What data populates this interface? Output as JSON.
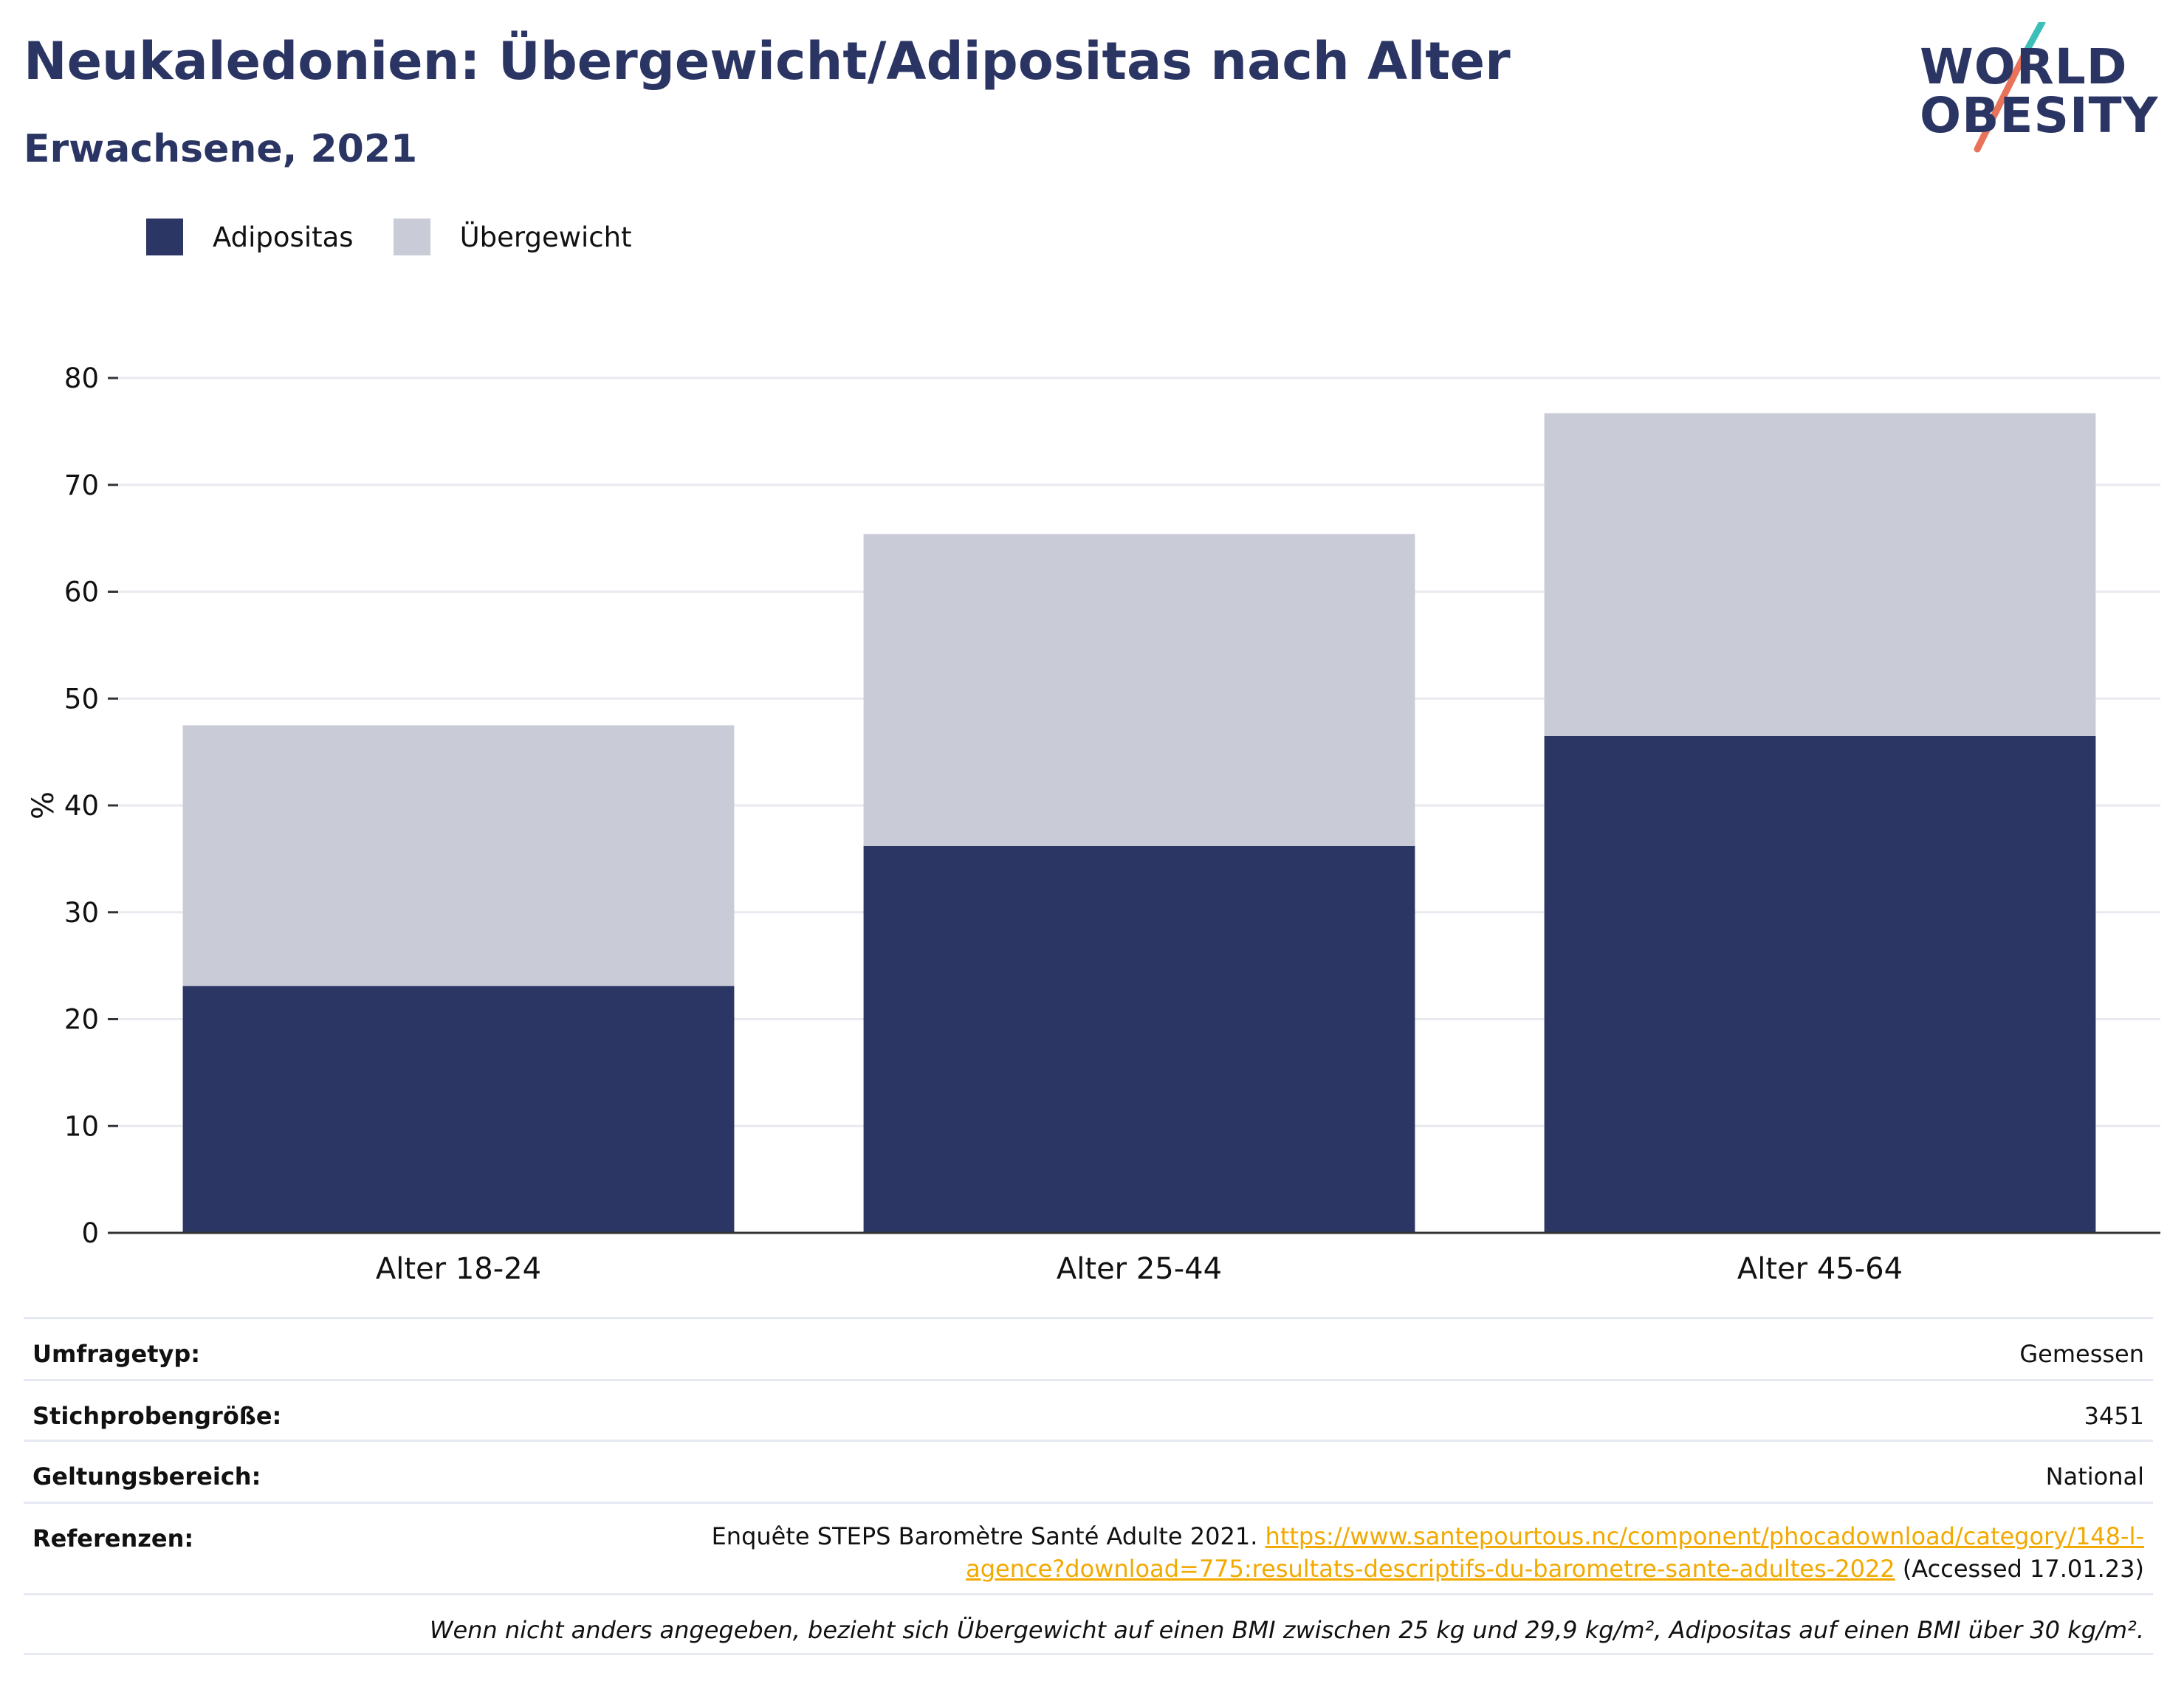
{
  "header": {
    "title": "Neukaledonien: Übergewicht/Adipositas nach Alter",
    "subtitle": "Erwachsene, 2021"
  },
  "logo": {
    "line1": "WORLD",
    "line2": "OBESITY"
  },
  "legend": [
    {
      "label": "Adipositas",
      "color": "#2b3664"
    },
    {
      "label": "Übergewicht",
      "color": "#c9cbd6"
    }
  ],
  "chart_data": {
    "type": "bar",
    "stacked": true,
    "categories": [
      "Alter 18-24",
      "Alter 25-44",
      "Alter 45-64"
    ],
    "series": [
      {
        "name": "Adipositas",
        "values": [
          23.1,
          36.2,
          46.5
        ],
        "color": "#2b3664"
      },
      {
        "name": "Übergewicht",
        "values": [
          24.4,
          29.2,
          30.2
        ],
        "color": "#c9cbd6"
      }
    ],
    "ylabel": "%",
    "ylim": [
      0,
      80
    ],
    "yticks": [
      0,
      10,
      20,
      30,
      40,
      50,
      60,
      70,
      80
    ],
    "grid": true
  },
  "meta": {
    "survey_type_label": "Umfragetyp:",
    "survey_type_value": "Gemessen",
    "sample_label": "Stichprobengröße:",
    "sample_value": "3451",
    "scope_label": "Geltungsbereich:",
    "scope_value": "National",
    "refs_label": "Referenzen:",
    "refs_text": "Enquête STEPS Baromètre Santé Adulte 2021.",
    "refs_link_1": "https://www.santepourtous.nc/component/phocadownload/category/148-l-",
    "refs_link_2": "agence?download=775:resultats-descriptifs-du-barometre-sante-adultes-2022",
    "refs_accessed": "(Accessed 17.01.23)",
    "note": "Wenn nicht anders angegeben, bezieht sich Übergewicht auf einen BMI zwischen 25 kg und 29,9 kg/m², Adipositas auf einen BMI über 30 kg/m²."
  }
}
